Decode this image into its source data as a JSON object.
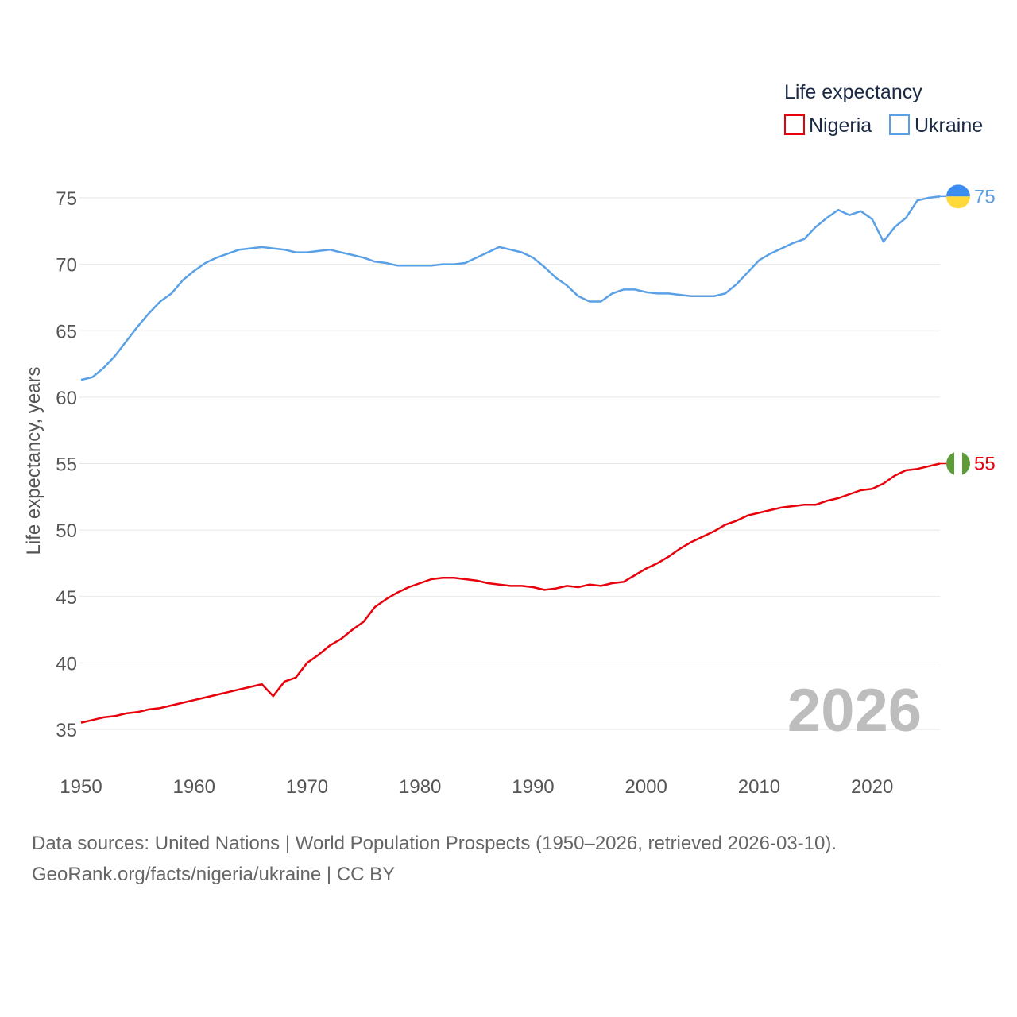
{
  "chart_data": {
    "type": "line",
    "title": "",
    "xlabel": "",
    "ylabel": "Life expectancy, years",
    "xlim": [
      1950,
      2026
    ],
    "ylim": [
      33,
      76
    ],
    "yticks": [
      35,
      40,
      45,
      50,
      55,
      60,
      65,
      70,
      75
    ],
    "xticks": [
      1950,
      1960,
      1970,
      1980,
      1990,
      2000,
      2010,
      2020
    ],
    "legend_title": "Life expectancy",
    "legend_placement": "top-right",
    "year_watermark": "2026",
    "x": [
      1950,
      1951,
      1952,
      1953,
      1954,
      1955,
      1956,
      1957,
      1958,
      1959,
      1960,
      1961,
      1962,
      1963,
      1964,
      1965,
      1966,
      1967,
      1968,
      1969,
      1970,
      1971,
      1972,
      1973,
      1974,
      1975,
      1976,
      1977,
      1978,
      1979,
      1980,
      1981,
      1982,
      1983,
      1984,
      1985,
      1986,
      1987,
      1988,
      1989,
      1990,
      1991,
      1992,
      1993,
      1994,
      1995,
      1996,
      1997,
      1998,
      1999,
      2000,
      2001,
      2002,
      2003,
      2004,
      2005,
      2006,
      2007,
      2008,
      2009,
      2010,
      2011,
      2012,
      2013,
      2014,
      2015,
      2016,
      2017,
      2018,
      2019,
      2020,
      2021,
      2022,
      2023,
      2024,
      2025,
      2026
    ],
    "series": [
      {
        "name": "Nigeria",
        "color": "#e8000b",
        "end_label": "55",
        "flag": "nigeria",
        "values": [
          35.5,
          35.7,
          35.9,
          36.0,
          36.2,
          36.3,
          36.5,
          36.6,
          36.8,
          37.0,
          37.2,
          37.4,
          37.6,
          37.8,
          38.0,
          38.2,
          38.4,
          37.5,
          38.6,
          38.9,
          40.0,
          40.6,
          41.3,
          41.8,
          42.5,
          43.1,
          44.2,
          44.8,
          45.3,
          45.7,
          46.0,
          46.3,
          46.4,
          46.4,
          46.3,
          46.2,
          46.0,
          45.9,
          45.8,
          45.8,
          45.7,
          45.5,
          45.6,
          45.8,
          45.7,
          45.9,
          45.8,
          46.0,
          46.1,
          46.6,
          47.1,
          47.5,
          48.0,
          48.6,
          49.1,
          49.5,
          49.9,
          50.4,
          50.7,
          51.1,
          51.3,
          51.5,
          51.7,
          51.8,
          51.9,
          51.9,
          52.2,
          52.4,
          52.7,
          53.0,
          53.1,
          53.5,
          54.1,
          54.5,
          54.6,
          54.8,
          55.0
        ]
      },
      {
        "name": "Ukraine",
        "color": "#5aa0e6",
        "end_label": "75",
        "flag": "ukraine",
        "values": [
          61.3,
          61.5,
          62.2,
          63.1,
          64.2,
          65.3,
          66.3,
          67.2,
          67.8,
          68.8,
          69.5,
          70.1,
          70.5,
          70.8,
          71.1,
          71.2,
          71.3,
          71.2,
          71.1,
          70.9,
          70.9,
          71.0,
          71.1,
          70.9,
          70.7,
          70.5,
          70.2,
          70.1,
          69.9,
          69.9,
          69.9,
          69.9,
          70.0,
          70.0,
          70.1,
          70.5,
          70.9,
          71.3,
          71.1,
          70.9,
          70.5,
          69.8,
          69.0,
          68.4,
          67.6,
          67.2,
          67.2,
          67.8,
          68.1,
          68.1,
          67.9,
          67.8,
          67.8,
          67.7,
          67.6,
          67.6,
          67.6,
          67.8,
          68.5,
          69.4,
          70.3,
          70.8,
          71.2,
          71.6,
          71.9,
          72.8,
          73.5,
          74.1,
          73.7,
          74.0,
          73.4,
          71.7,
          72.8,
          73.5,
          74.8,
          75.0,
          75.1
        ]
      }
    ]
  },
  "footer": {
    "line1": "Data sources: United Nations | World Population Prospects (1950–2026, retrieved 2026-03-10).",
    "line2": "GeoRank.org/facts/nigeria/ukraine | CC BY"
  }
}
